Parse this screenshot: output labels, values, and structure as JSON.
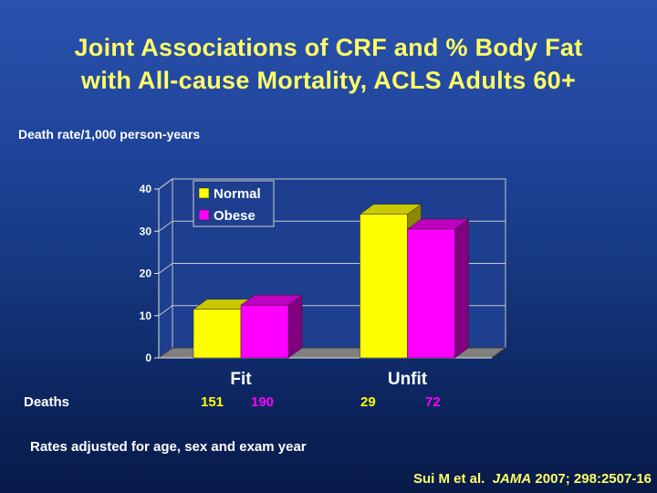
{
  "title": {
    "line1": "Joint Associations of CRF and % Body Fat",
    "line2": "with All-cause Mortality, ACLS Adults 60+"
  },
  "y_axis_title": "Death rate/1,000 person-years",
  "chart_data": {
    "type": "bar",
    "title": "Joint Associations of CRF and % Body Fat with All-cause Mortality, ACLS Adults 60+",
    "ylabel": "Death rate/1,000 person-years",
    "xlabel": "",
    "categories": [
      "Fit",
      "Unfit"
    ],
    "series": [
      {
        "name": "Normal",
        "values": [
          11.5,
          34.0
        ]
      },
      {
        "name": "Obese",
        "values": [
          12.5,
          30.5
        ]
      }
    ],
    "ylim": [
      0,
      40
    ],
    "yticks": [
      "0",
      "10",
      "20",
      "30",
      "40"
    ],
    "grid": true,
    "legend": "top-left"
  },
  "colors": {
    "normal_front": "#ffff00",
    "normal_top": "#c8c800",
    "normal_side": "#8a8a00",
    "obese_front": "#ff00ff",
    "obese_top": "#c000c0",
    "obese_side": "#800080",
    "floor": "#808080",
    "wall": "#1e3f90"
  },
  "deaths": {
    "label": "Deaths",
    "values": [
      {
        "text": "151",
        "series": "Normal"
      },
      {
        "text": "190",
        "series": "Obese"
      },
      {
        "text": "29",
        "series": "Normal"
      },
      {
        "text": "72",
        "series": "Obese"
      }
    ]
  },
  "note": "Rates adjusted for age, sex and exam year",
  "citation": {
    "authors": "Sui M et al.",
    "journal": "JAMA",
    "details": "2007; 298:2507-16"
  }
}
